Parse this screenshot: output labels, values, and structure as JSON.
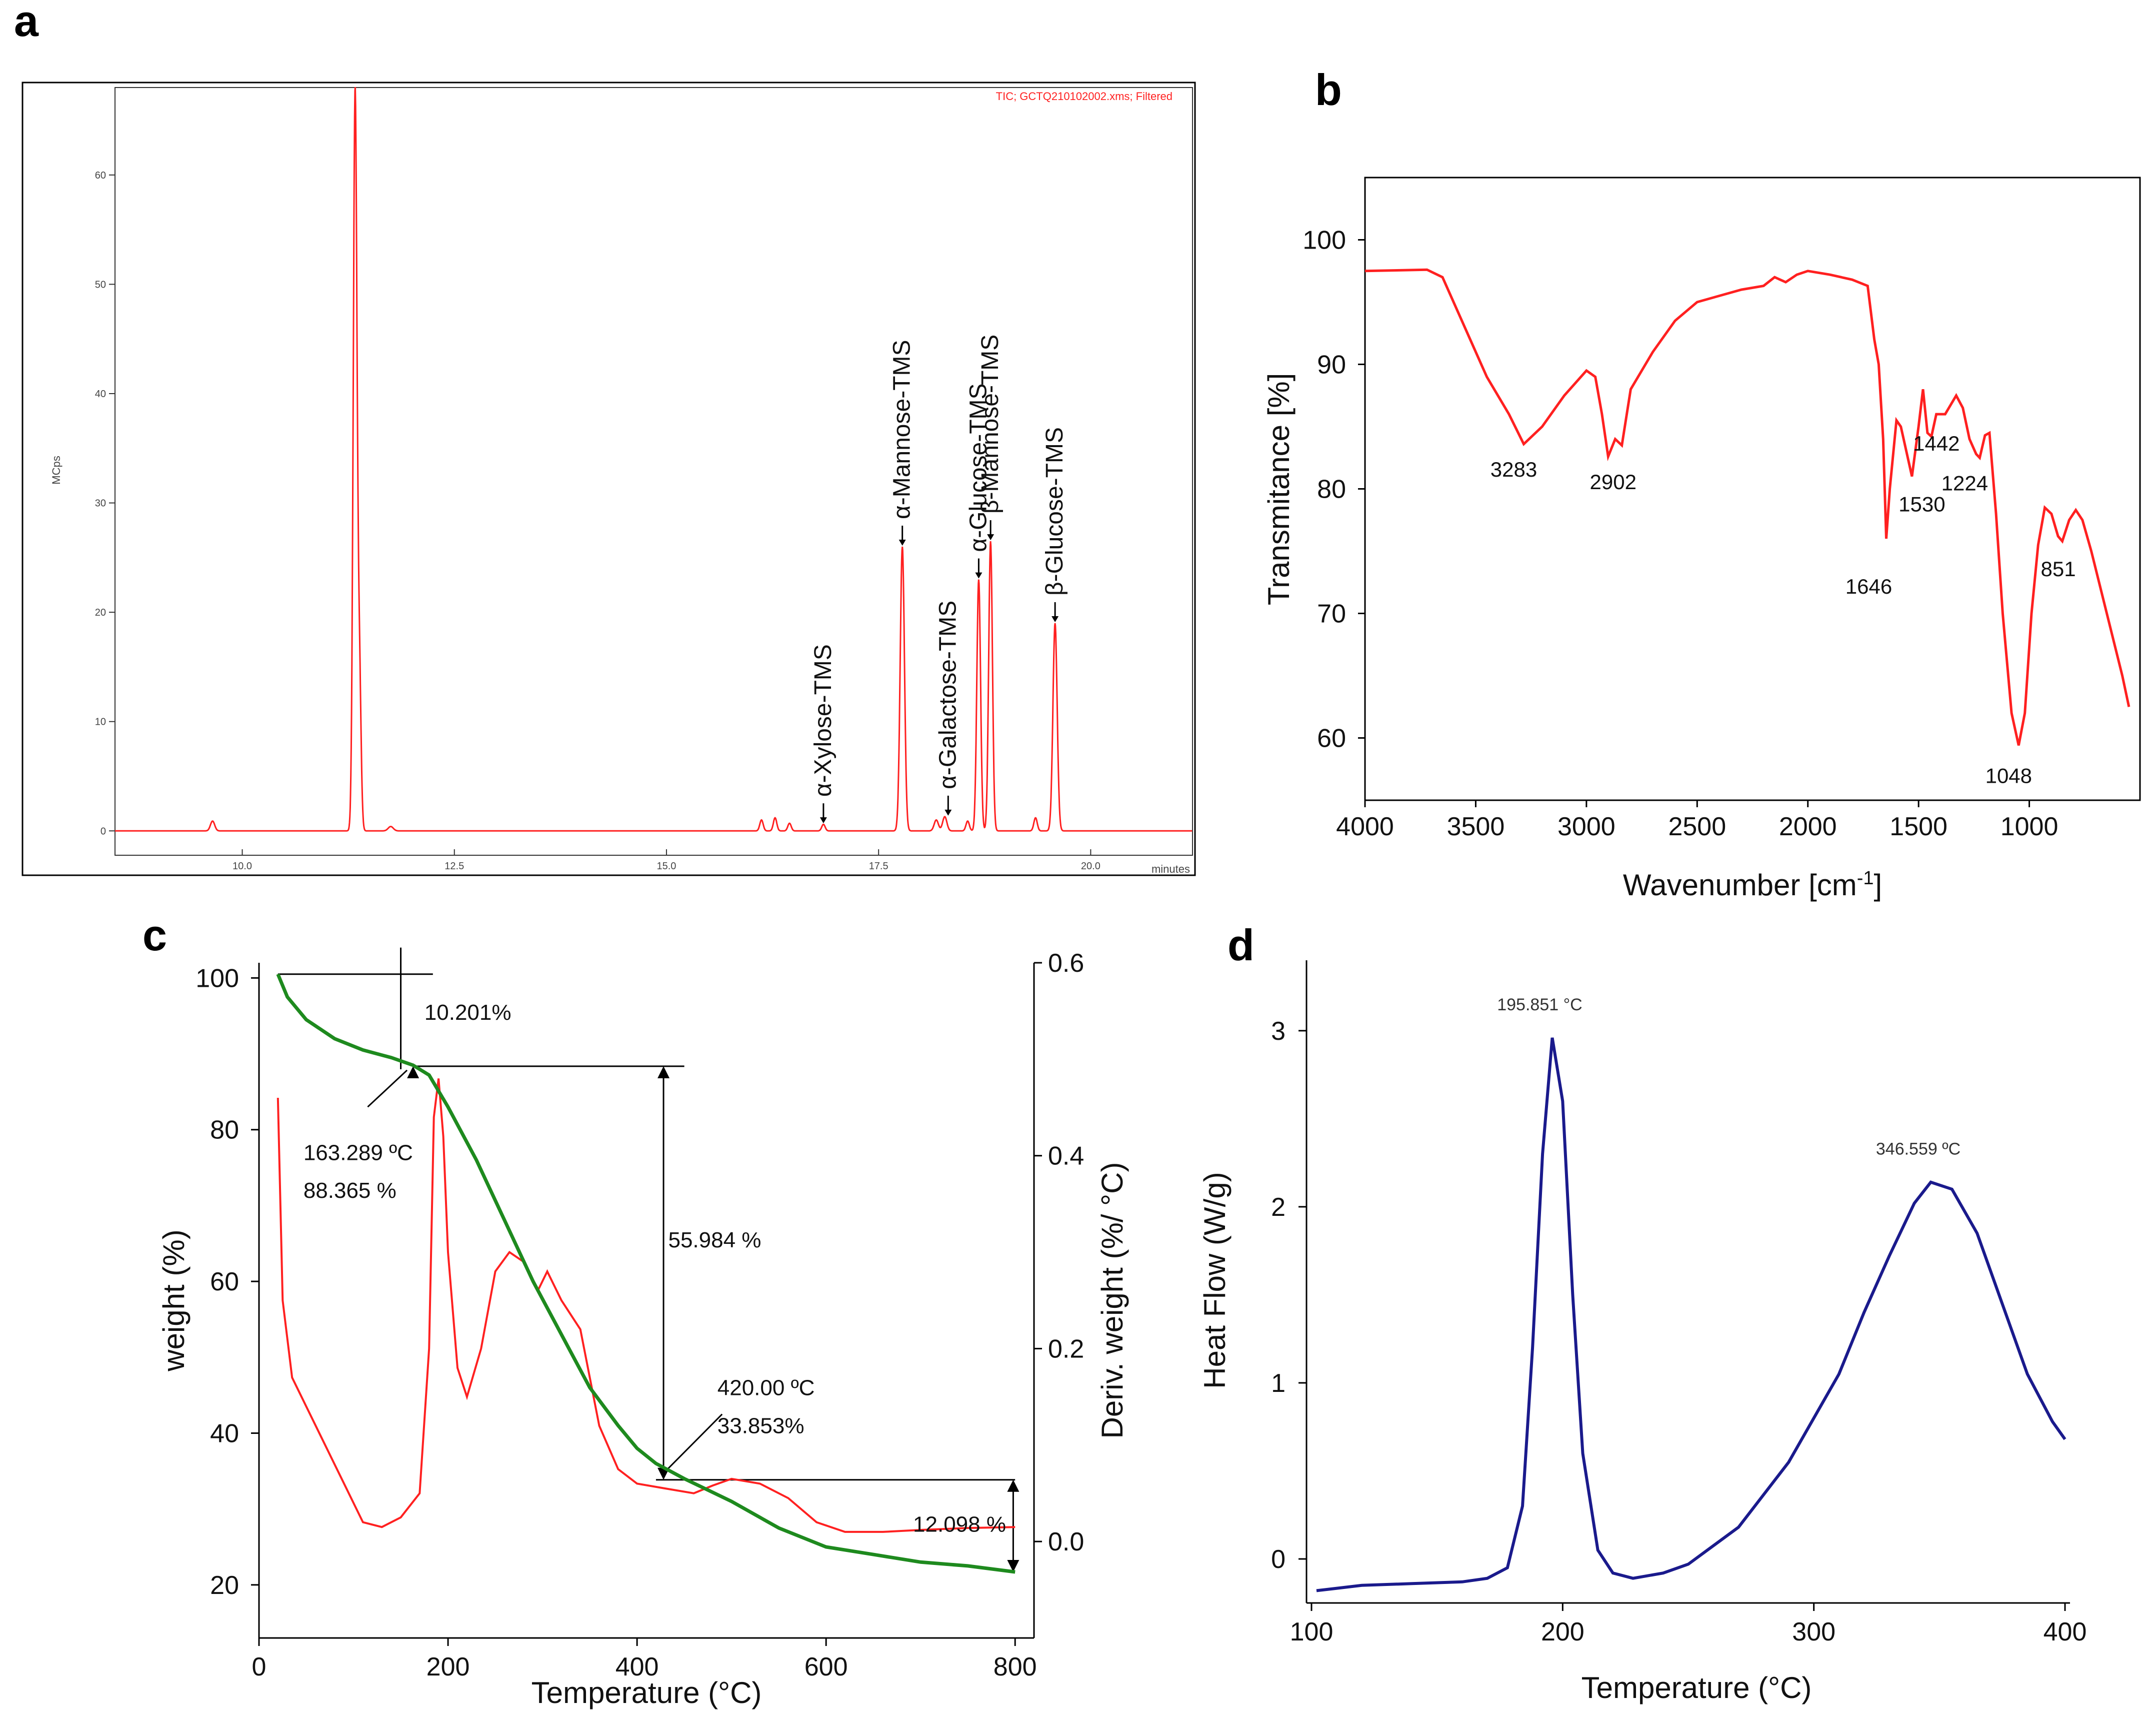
{
  "panels": {
    "a": "a",
    "b": "b",
    "c": "c",
    "d": "d"
  },
  "colors": {
    "red": "#ff2020",
    "green": "#1e8a1e",
    "blue": "#1a1a8c",
    "axis": "#000000"
  },
  "chart_data": [
    {
      "id": "a",
      "type": "line",
      "title": "TIC; GCTQ210102002.xms; Filtered",
      "xlabel": "minutes",
      "ylabel": "MCps",
      "xlim": [
        8.5,
        21.2
      ],
      "ylim": [
        -2,
        68
      ],
      "xticks": [
        10.0,
        12.5,
        15.0,
        17.5,
        20.0
      ],
      "xtick_labels": [
        "10.0",
        "12.5",
        "15.0",
        "17.5",
        "20.0"
      ],
      "yticks": [
        0,
        10,
        20,
        30,
        40,
        50,
        60
      ],
      "ytick_labels": [
        "0",
        "10",
        "20",
        "30",
        "40",
        "50",
        "60"
      ],
      "peaks": [
        {
          "x": 9.65,
          "y": 0.9,
          "w": 0.025
        },
        {
          "x": 11.33,
          "y": 67.5,
          "w": 0.022
        },
        {
          "x": 11.38,
          "y": 14.5,
          "w": 0.02
        },
        {
          "x": 11.75,
          "y": 0.4,
          "w": 0.03
        },
        {
          "x": 16.12,
          "y": 1.0,
          "w": 0.02
        },
        {
          "x": 16.28,
          "y": 1.2,
          "w": 0.02
        },
        {
          "x": 16.45,
          "y": 0.7,
          "w": 0.02
        },
        {
          "x": 16.85,
          "y": 0.6,
          "w": 0.02
        },
        {
          "x": 17.78,
          "y": 26.0,
          "w": 0.025
        },
        {
          "x": 18.18,
          "y": 1.0,
          "w": 0.025
        },
        {
          "x": 18.28,
          "y": 1.3,
          "w": 0.025
        },
        {
          "x": 18.55,
          "y": 0.9,
          "w": 0.02
        },
        {
          "x": 18.68,
          "y": 23.0,
          "w": 0.022
        },
        {
          "x": 18.82,
          "y": 26.5,
          "w": 0.022
        },
        {
          "x": 19.35,
          "y": 1.2,
          "w": 0.02
        },
        {
          "x": 19.58,
          "y": 19.0,
          "w": 0.025
        }
      ],
      "labels": [
        {
          "text": "α-Xylose-TMS",
          "x": 16.85,
          "y": 0.6
        },
        {
          "text": "α-Mannose-TMS",
          "x": 17.78,
          "y": 26.0
        },
        {
          "text": "α-Galactose-TMS",
          "x": 18.32,
          "y": 1.3
        },
        {
          "text": "α-Glucose-TMS",
          "x": 18.68,
          "y": 23.0
        },
        {
          "text": "β-Mannose-TMS",
          "x": 18.82,
          "y": 26.5
        },
        {
          "text": "β-Glucose-TMS",
          "x": 19.58,
          "y": 19.0
        }
      ]
    },
    {
      "id": "b",
      "type": "line",
      "title": "",
      "xlabel": "Wavenumber [cm",
      "xlabel_sup": "-1",
      "xlabel_end": "]",
      "ylabel": "Transmitance [%]",
      "xlim": [
        4000,
        500
      ],
      "ylim": [
        55,
        105
      ],
      "xticks": [
        4000,
        3500,
        3000,
        2500,
        2000,
        1500,
        1000
      ],
      "xtick_labels": [
        "4000",
        "3500",
        "3000",
        "2500",
        "2000",
        "1500",
        "1000"
      ],
      "yticks": [
        60,
        70,
        80,
        90,
        100
      ],
      "ytick_labels": [
        "60",
        "70",
        "80",
        "90",
        "100"
      ],
      "points": [
        [
          4000,
          97.5
        ],
        [
          3720,
          97.6
        ],
        [
          3650,
          97
        ],
        [
          3550,
          93
        ],
        [
          3450,
          89
        ],
        [
          3350,
          86
        ],
        [
          3283,
          83.6
        ],
        [
          3200,
          85
        ],
        [
          3100,
          87.5
        ],
        [
          3000,
          89.5
        ],
        [
          2960,
          89
        ],
        [
          2930,
          86
        ],
        [
          2902,
          82.6
        ],
        [
          2870,
          84
        ],
        [
          2840,
          83.5
        ],
        [
          2800,
          88
        ],
        [
          2700,
          91
        ],
        [
          2600,
          93.5
        ],
        [
          2500,
          95
        ],
        [
          2400,
          95.5
        ],
        [
          2300,
          96
        ],
        [
          2200,
          96.3
        ],
        [
          2150,
          97
        ],
        [
          2100,
          96.6
        ],
        [
          2050,
          97.2
        ],
        [
          2000,
          97.5
        ],
        [
          1900,
          97.2
        ],
        [
          1800,
          96.8
        ],
        [
          1730,
          96.3
        ],
        [
          1700,
          92
        ],
        [
          1680,
          90
        ],
        [
          1660,
          84
        ],
        [
          1646,
          76
        ],
        [
          1630,
          80
        ],
        [
          1600,
          85.5
        ],
        [
          1580,
          85
        ],
        [
          1530,
          81
        ],
        [
          1500,
          85
        ],
        [
          1480,
          88
        ],
        [
          1460,
          84.5
        ],
        [
          1442,
          84.2
        ],
        [
          1420,
          86
        ],
        [
          1380,
          86
        ],
        [
          1330,
          87.5
        ],
        [
          1300,
          86.5
        ],
        [
          1270,
          84
        ],
        [
          1240,
          82.8
        ],
        [
          1224,
          82.5
        ],
        [
          1200,
          84.3
        ],
        [
          1180,
          84.5
        ],
        [
          1150,
          78
        ],
        [
          1120,
          70
        ],
        [
          1080,
          62
        ],
        [
          1048,
          59.4
        ],
        [
          1020,
          62
        ],
        [
          990,
          70
        ],
        [
          960,
          75.5
        ],
        [
          930,
          78.5
        ],
        [
          900,
          78
        ],
        [
          870,
          76.2
        ],
        [
          851,
          75.8
        ],
        [
          820,
          77.5
        ],
        [
          790,
          78.3
        ],
        [
          760,
          77.5
        ],
        [
          720,
          75
        ],
        [
          650,
          70
        ],
        [
          580,
          65
        ],
        [
          550,
          62.5
        ]
      ],
      "labels": [
        {
          "text": "3283",
          "x": 3283,
          "y": 83.6
        },
        {
          "text": "2902",
          "x": 2902,
          "y": 82.6
        },
        {
          "text": "1646",
          "x": 1646,
          "y": 76
        },
        {
          "text": "1530",
          "x": 1530,
          "y": 81
        },
        {
          "text": "1442",
          "x": 1442,
          "y": 84.2
        },
        {
          "text": "1224",
          "x": 1224,
          "y": 82.5
        },
        {
          "text": "1048",
          "x": 1048,
          "y": 59.4
        },
        {
          "text": "851",
          "x": 851,
          "y": 75.8
        }
      ]
    },
    {
      "id": "c",
      "type": "line",
      "title": "",
      "xlabel": "Temperature (°C)",
      "ylabel": "weight (%)",
      "y2label": "Deriv. weight (%/ °C)",
      "xlim": [
        0,
        820
      ],
      "ylim": [
        13,
        102
      ],
      "y2lim": [
        -0.1,
        0.6
      ],
      "xticks": [
        0,
        200,
        400,
        600,
        800
      ],
      "xtick_labels": [
        "0",
        "200",
        "400",
        "600",
        "800"
      ],
      "yticks": [
        20,
        40,
        60,
        80,
        100
      ],
      "ytick_labels": [
        "20",
        "40",
        "60",
        "80",
        "100"
      ],
      "y2ticks": [
        0.0,
        0.2,
        0.4,
        0.6
      ],
      "y2tick_labels": [
        "0.0",
        "0.2",
        "0.4",
        "0.6"
      ],
      "series": [
        {
          "name": "weight",
          "axis": "left",
          "color": "green",
          "points": [
            [
              20,
              100.5
            ],
            [
              30,
              97.5
            ],
            [
              50,
              94.5
            ],
            [
              80,
              92
            ],
            [
              110,
              90.5
            ],
            [
              140,
              89.5
            ],
            [
              163,
              88.5
            ],
            [
              180,
              87.2
            ],
            [
              200,
              83
            ],
            [
              230,
              76
            ],
            [
              260,
              68
            ],
            [
              290,
              60
            ],
            [
              320,
              53
            ],
            [
              350,
              46
            ],
            [
              380,
              41
            ],
            [
              400,
              38
            ],
            [
              420,
              36
            ],
            [
              450,
              34
            ],
            [
              500,
              31
            ],
            [
              550,
              27.5
            ],
            [
              600,
              25
            ],
            [
              650,
              24
            ],
            [
              700,
              23
            ],
            [
              750,
              22.5
            ],
            [
              800,
              21.7
            ]
          ]
        },
        {
          "name": "deriv",
          "axis": "right",
          "color": "red",
          "points": [
            [
              20,
              0.46
            ],
            [
              25,
              0.25
            ],
            [
              35,
              0.17
            ],
            [
              50,
              0.14
            ],
            [
              70,
              0.1
            ],
            [
              90,
              0.06
            ],
            [
              110,
              0.02
            ],
            [
              130,
              0.015
            ],
            [
              150,
              0.025
            ],
            [
              170,
              0.05
            ],
            [
              180,
              0.2
            ],
            [
              185,
              0.44
            ],
            [
              190,
              0.48
            ],
            [
              195,
              0.42
            ],
            [
              200,
              0.3
            ],
            [
              210,
              0.18
            ],
            [
              220,
              0.15
            ],
            [
              235,
              0.2
            ],
            [
              250,
              0.28
            ],
            [
              265,
              0.3
            ],
            [
              280,
              0.29
            ],
            [
              295,
              0.26
            ],
            [
              305,
              0.28
            ],
            [
              320,
              0.25
            ],
            [
              340,
              0.22
            ],
            [
              360,
              0.12
            ],
            [
              380,
              0.075
            ],
            [
              400,
              0.06
            ],
            [
              430,
              0.055
            ],
            [
              460,
              0.05
            ],
            [
              480,
              0.058
            ],
            [
              500,
              0.065
            ],
            [
              530,
              0.06
            ],
            [
              560,
              0.045
            ],
            [
              590,
              0.02
            ],
            [
              620,
              0.01
            ],
            [
              660,
              0.01
            ],
            [
              700,
              0.012
            ],
            [
              750,
              0.014
            ],
            [
              800,
              0.015
            ]
          ]
        }
      ],
      "annotations": {
        "step1": "10.201%",
        "onset1_temp": "163.289 ºC",
        "onset1_wt": "88.365 %",
        "step2": "55.984 %",
        "onset2_temp": "420.00 ºC",
        "onset2_wt": "33.853%",
        "step3": "12.098 %"
      }
    },
    {
      "id": "d",
      "type": "line",
      "title": "",
      "xlabel": "Temperature (°C)",
      "ylabel": "Heat Flow (W/g)",
      "xlim": [
        100,
        400
      ],
      "ylim": [
        -0.25,
        3.4
      ],
      "xticks": [
        100,
        200,
        300,
        400
      ],
      "xtick_labels": [
        "100",
        "200",
        "300",
        "400"
      ],
      "yticks": [
        0,
        1,
        2,
        3
      ],
      "ytick_labels": [
        "0",
        "1",
        "2",
        "3"
      ],
      "points": [
        [
          102,
          -0.18
        ],
        [
          120,
          -0.15
        ],
        [
          140,
          -0.14
        ],
        [
          160,
          -0.13
        ],
        [
          170,
          -0.11
        ],
        [
          178,
          -0.05
        ],
        [
          184,
          0.3
        ],
        [
          188,
          1.2
        ],
        [
          192,
          2.3
        ],
        [
          195.85,
          2.96
        ],
        [
          200,
          2.6
        ],
        [
          204,
          1.5
        ],
        [
          208,
          0.6
        ],
        [
          214,
          0.05
        ],
        [
          220,
          -0.08
        ],
        [
          228,
          -0.11
        ],
        [
          240,
          -0.08
        ],
        [
          250,
          -0.03
        ],
        [
          270,
          0.18
        ],
        [
          290,
          0.55
        ],
        [
          310,
          1.05
        ],
        [
          320,
          1.4
        ],
        [
          330,
          1.72
        ],
        [
          340,
          2.02
        ],
        [
          346.56,
          2.14
        ],
        [
          355,
          2.1
        ],
        [
          365,
          1.85
        ],
        [
          375,
          1.45
        ],
        [
          385,
          1.05
        ],
        [
          395,
          0.78
        ],
        [
          400,
          0.68
        ]
      ],
      "labels": [
        {
          "text": "195.851 °C",
          "x": 195.85,
          "y": 2.96
        },
        {
          "text": "346.559 ºC",
          "x": 346.56,
          "y": 2.14
        }
      ]
    }
  ]
}
